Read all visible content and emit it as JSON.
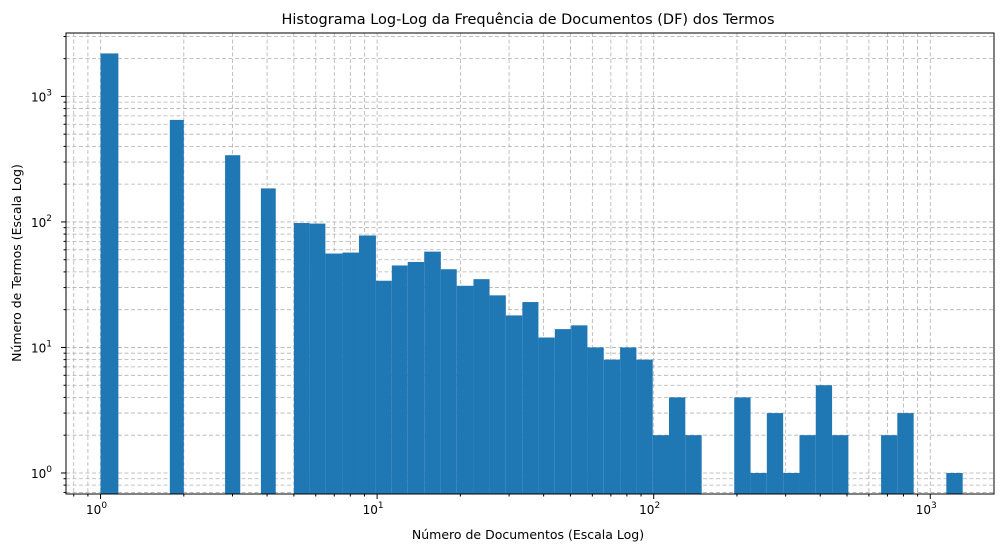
{
  "chart_data": {
    "type": "bar",
    "title": "Histograma Log-Log da Frequência de Documentos (DF) dos Termos",
    "xlabel": "Número de Documentos (Escala Log)",
    "ylabel": "Número de Termos (Escala Log)",
    "x_scale": "log",
    "y_scale": "log",
    "xlim": [
      0.75,
      1700
    ],
    "ylim": [
      0.68,
      3200
    ],
    "grid": true,
    "grid_style": "dashed, major and minor",
    "bar_color": "#1f77b4",
    "x_ticks": [
      {
        "base": "10",
        "exp": "0",
        "value": 1
      },
      {
        "base": "10",
        "exp": "1",
        "value": 10
      },
      {
        "base": "10",
        "exp": "2",
        "value": 100
      },
      {
        "base": "10",
        "exp": "3",
        "value": 1000
      }
    ],
    "y_ticks": [
      {
        "base": "10",
        "exp": "0",
        "value": 1
      },
      {
        "base": "10",
        "exp": "1",
        "value": 10
      },
      {
        "base": "10",
        "exp": "2",
        "value": 100
      },
      {
        "base": "10",
        "exp": "3",
        "value": 1000
      }
    ],
    "bins": [
      {
        "x0": 1.0,
        "x1": 1.16,
        "count": 2200
      },
      {
        "x0": 1.78,
        "x1": 2.0,
        "count": 650
      },
      {
        "x0": 2.82,
        "x1": 3.2,
        "count": 340
      },
      {
        "x0": 3.8,
        "x1": 4.3,
        "count": 185
      },
      {
        "x0": 5.0,
        "x1": 5.7,
        "count": 98
      },
      {
        "x0": 5.7,
        "x1": 6.5,
        "count": 97
      },
      {
        "x0": 6.5,
        "x1": 7.5,
        "count": 56
      },
      {
        "x0": 7.5,
        "x1": 8.6,
        "count": 57
      },
      {
        "x0": 8.6,
        "x1": 9.9,
        "count": 78
      },
      {
        "x0": 9.9,
        "x1": 11.3,
        "count": 34
      },
      {
        "x0": 11.3,
        "x1": 12.9,
        "count": 45
      },
      {
        "x0": 12.9,
        "x1": 14.8,
        "count": 48
      },
      {
        "x0": 14.8,
        "x1": 17.0,
        "count": 58
      },
      {
        "x0": 17.0,
        "x1": 19.4,
        "count": 42
      },
      {
        "x0": 19.4,
        "x1": 22.3,
        "count": 31
      },
      {
        "x0": 22.3,
        "x1": 25.5,
        "count": 35
      },
      {
        "x0": 25.5,
        "x1": 29.2,
        "count": 26
      },
      {
        "x0": 29.2,
        "x1": 33.5,
        "count": 18
      },
      {
        "x0": 33.5,
        "x1": 38.3,
        "count": 23
      },
      {
        "x0": 38.3,
        "x1": 43.9,
        "count": 12
      },
      {
        "x0": 43.9,
        "x1": 50.3,
        "count": 14
      },
      {
        "x0": 50.3,
        "x1": 57.6,
        "count": 15
      },
      {
        "x0": 57.6,
        "x1": 66.0,
        "count": 10
      },
      {
        "x0": 66.0,
        "x1": 75.6,
        "count": 8
      },
      {
        "x0": 75.6,
        "x1": 86.6,
        "count": 10
      },
      {
        "x0": 86.6,
        "x1": 99.2,
        "count": 8
      },
      {
        "x0": 99.2,
        "x1": 113.6,
        "count": 2
      },
      {
        "x0": 113.6,
        "x1": 130.1,
        "count": 4
      },
      {
        "x0": 130.1,
        "x1": 149.1,
        "count": 2
      },
      {
        "x0": 195.5,
        "x1": 224.0,
        "count": 4
      },
      {
        "x0": 224.0,
        "x1": 256.5,
        "count": 1
      },
      {
        "x0": 256.5,
        "x1": 293.8,
        "count": 3
      },
      {
        "x0": 293.8,
        "x1": 336.6,
        "count": 1
      },
      {
        "x0": 336.6,
        "x1": 385.5,
        "count": 2
      },
      {
        "x0": 385.5,
        "x1": 441.6,
        "count": 5
      },
      {
        "x0": 441.6,
        "x1": 505.8,
        "count": 2
      },
      {
        "x0": 664.0,
        "x1": 760.0,
        "count": 2
      },
      {
        "x0": 760.0,
        "x1": 871.0,
        "count": 3
      },
      {
        "x0": 1143.0,
        "x1": 1310.0,
        "count": 1
      }
    ]
  }
}
